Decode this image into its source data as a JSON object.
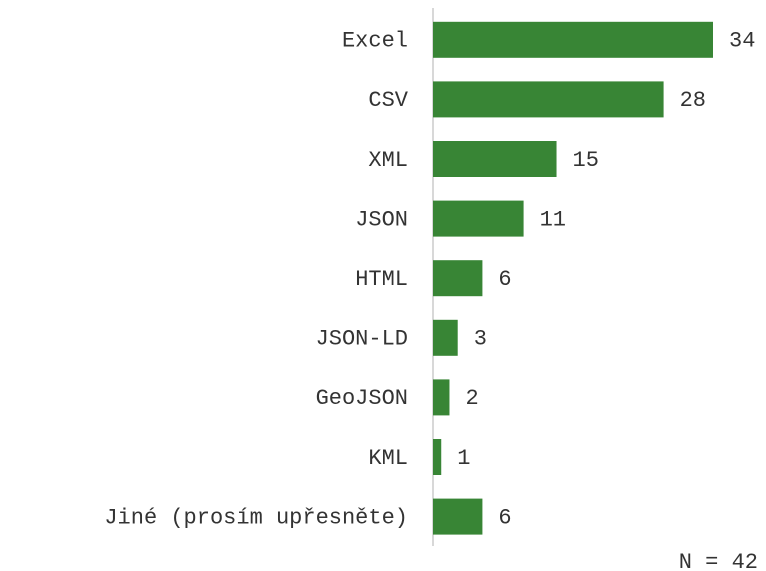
{
  "chart_data": {
    "type": "bar",
    "orientation": "horizontal",
    "categories": [
      "Excel",
      "CSV",
      "XML",
      "JSON",
      "HTML",
      "JSON-LD",
      "GeoJSON",
      "KML",
      "Jiné (prosím upřesněte)"
    ],
    "values": [
      34,
      28,
      15,
      11,
      6,
      3,
      2,
      1,
      6
    ],
    "color": "#388535",
    "xlim": [
      0,
      34
    ],
    "annotation": "N = 42"
  }
}
